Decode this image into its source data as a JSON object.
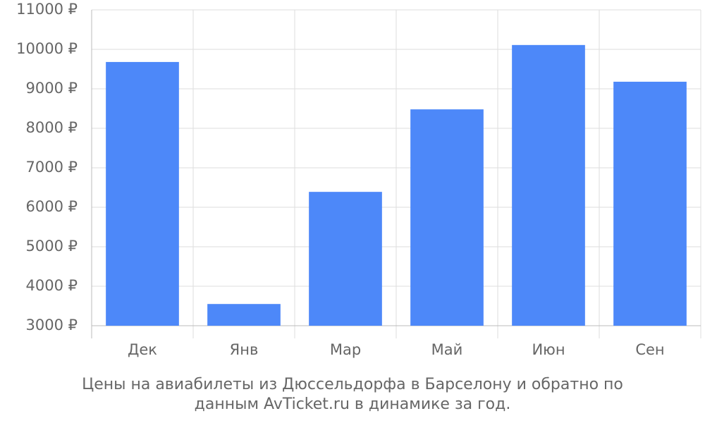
{
  "chart_data": {
    "type": "bar",
    "title": "Цены на авиабилеты из Дюссельдорфа в Барселону и обратно по данным AvTicket.ru в динамике за год.",
    "categories": [
      "Дек",
      "Янв",
      "Мар",
      "Май",
      "Июн",
      "Сен"
    ],
    "values": [
      9680,
      3550,
      6390,
      8480,
      10110,
      9180
    ],
    "color": "#4d88f9",
    "ylim": [
      3000,
      11000
    ],
    "yticks": [
      {
        "value": 3000,
        "label": "3000 ₽"
      },
      {
        "value": 4000,
        "label": "4000 ₽"
      },
      {
        "value": 5000,
        "label": "5000 ₽"
      },
      {
        "value": 6000,
        "label": "6000 ₽"
      },
      {
        "value": 7000,
        "label": "7000 ₽"
      },
      {
        "value": 8000,
        "label": "8000 ₽"
      },
      {
        "value": 9000,
        "label": "9000 ₽"
      },
      {
        "value": 10000,
        "label": "10000 ₽"
      },
      {
        "value": 11000,
        "label": "11000 ₽"
      }
    ],
    "grid": true
  }
}
